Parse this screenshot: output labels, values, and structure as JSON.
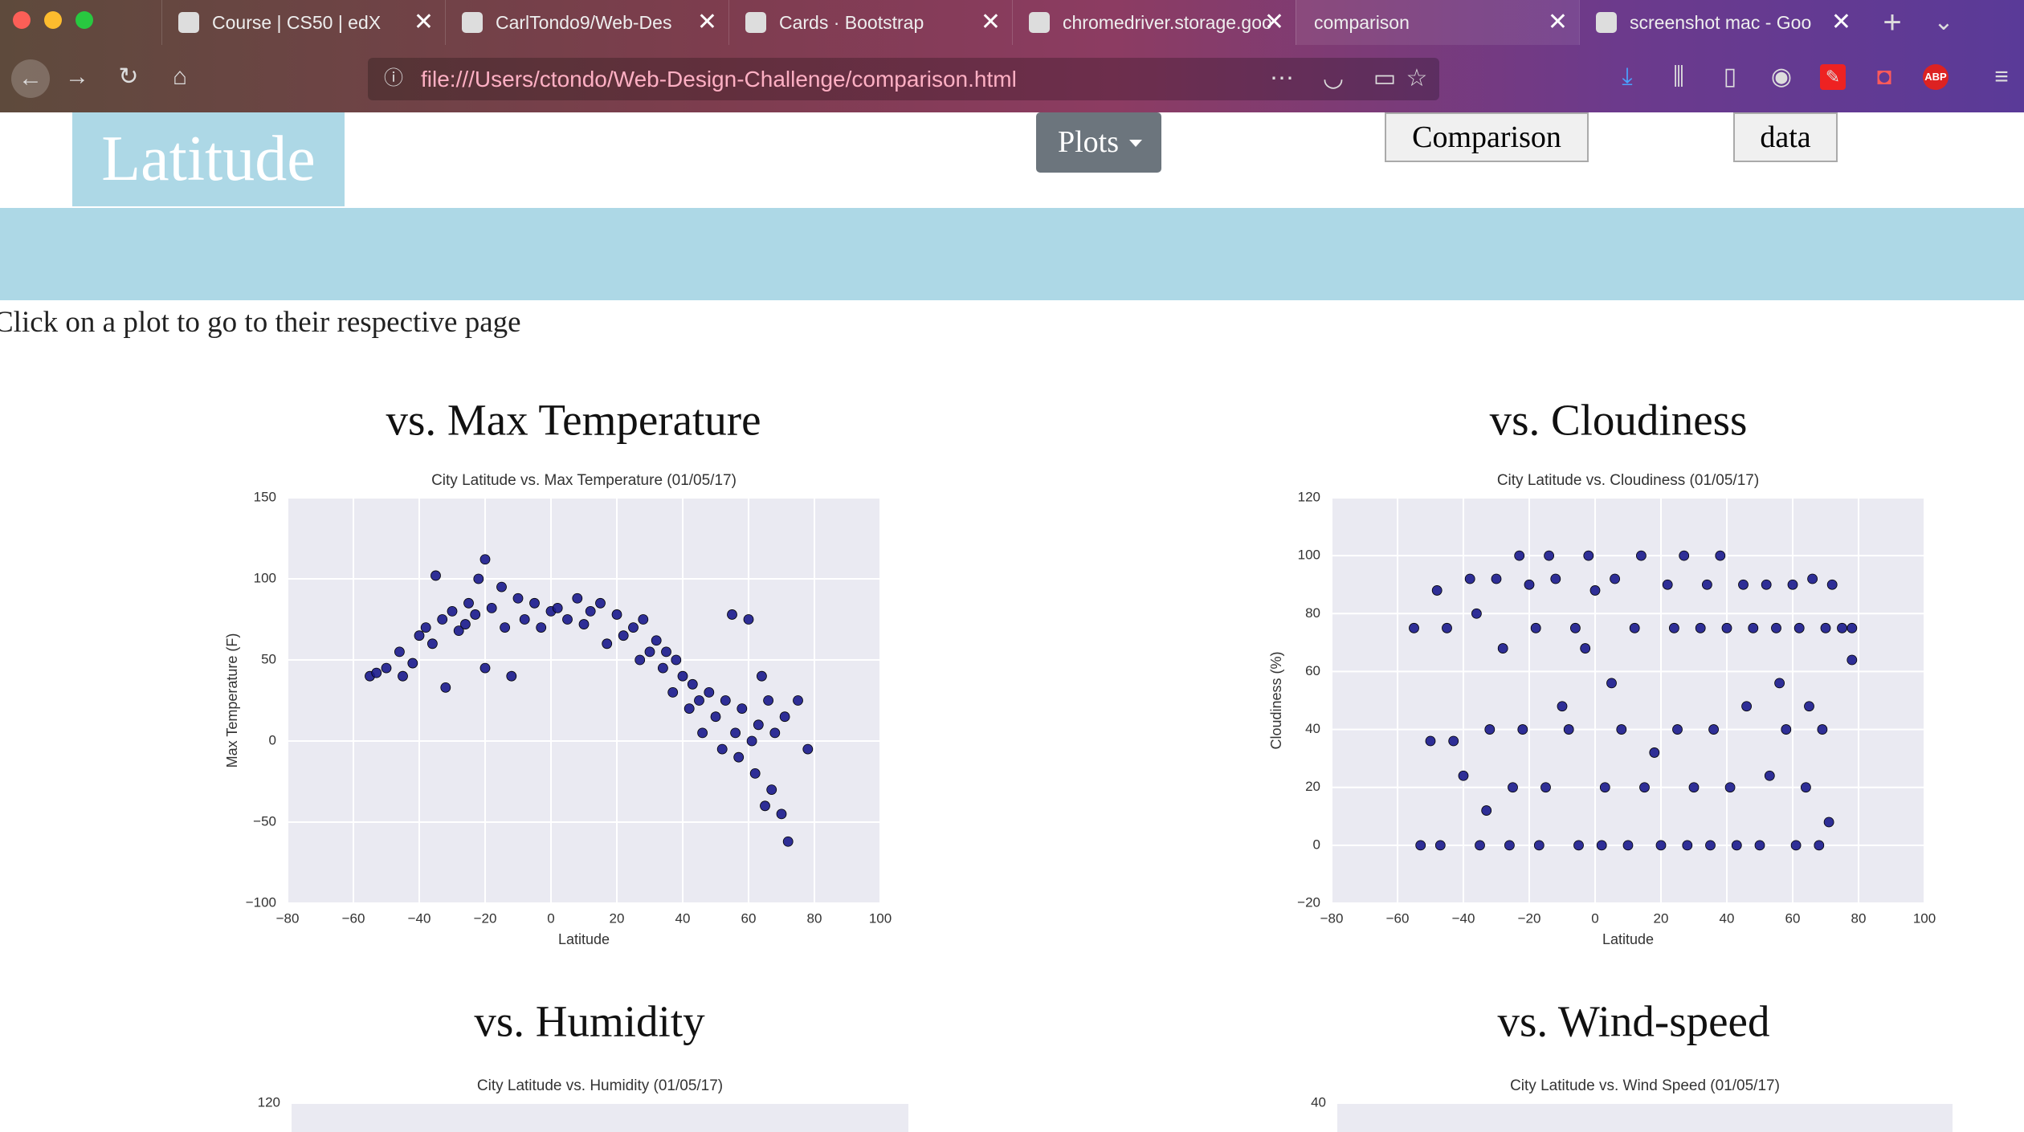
{
  "browser": {
    "tabs": [
      "Course | CS50 | edX",
      "CarlTondo9/Web-Des",
      "Cards · Bootstrap",
      "chromedriver.storage.goo",
      "comparison",
      "screenshot mac - Goo"
    ],
    "url": "file:///Users/ctondo/Web-Design-Challenge/comparison.html"
  },
  "page": {
    "brand": "Latitude",
    "nav": [
      "Plots",
      "Comparison",
      "data"
    ],
    "instruction": "Click on a plot to go to their respective page"
  },
  "chart_data": [
    {
      "type": "scatter",
      "heading": "vs. Max Temperature",
      "title": "City Latitude vs. Max Temperature (01/05/17)",
      "xlabel": "Latitude",
      "ylabel": "Max Temperature (F)",
      "color": "#1a1a8c",
      "xlim": [
        -80,
        100
      ],
      "ylim": [
        -100,
        150
      ],
      "xticks": [
        {
          "value": -80,
          "label": "−80"
        },
        {
          "value": -60,
          "label": "−60"
        },
        {
          "value": -40,
          "label": "−40"
        },
        {
          "value": -20,
          "label": "−20"
        },
        0,
        20,
        40,
        60,
        80,
        100
      ],
      "yticks": [
        {
          "value": -100,
          "label": "−100"
        },
        {
          "value": -50,
          "label": "−50"
        },
        0,
        50,
        100,
        150
      ],
      "x": [
        -55,
        -53,
        -50,
        -46,
        -45,
        -42,
        -40,
        -38,
        -36,
        -35,
        -33,
        -32,
        -30,
        -28,
        -26,
        -25,
        -23,
        -22,
        -20,
        -20,
        -18,
        -15,
        -14,
        -12,
        -10,
        -8,
        -5,
        -3,
        0,
        2,
        5,
        8,
        10,
        12,
        15,
        17,
        20,
        22,
        25,
        27,
        28,
        30,
        32,
        34,
        35,
        37,
        38,
        40,
        42,
        43,
        45,
        46,
        48,
        50,
        52,
        53,
        55,
        56,
        57,
        58,
        60,
        61,
        62,
        63,
        64,
        65,
        66,
        67,
        68,
        70,
        71,
        72,
        75,
        78
      ],
      "y": [
        40,
        42,
        45,
        55,
        40,
        48,
        65,
        70,
        60,
        102,
        75,
        33,
        80,
        68,
        72,
        85,
        78,
        100,
        112,
        45,
        82,
        95,
        70,
        40,
        88,
        75,
        85,
        70,
        80,
        82,
        75,
        88,
        72,
        80,
        85,
        60,
        78,
        65,
        70,
        50,
        75,
        55,
        62,
        45,
        55,
        30,
        50,
        40,
        20,
        35,
        25,
        5,
        30,
        15,
        -5,
        25,
        78,
        5,
        -10,
        20,
        75,
        0,
        -20,
        10,
        40,
        -40,
        25,
        -30,
        5,
        -45,
        15,
        -62,
        25,
        -5
      ]
    },
    {
      "type": "scatter",
      "heading": "vs. Cloudiness",
      "title": "City Latitude vs. Cloudiness (01/05/17)",
      "xlabel": "Latitude",
      "ylabel": "Cloudiness (%)",
      "color": "#1a1a8c",
      "xlim": [
        -80,
        100
      ],
      "ylim": [
        -20,
        120
      ],
      "xticks": [
        {
          "value": -80,
          "label": "−80"
        },
        {
          "value": -60,
          "label": "−60"
        },
        {
          "value": -40,
          "label": "−40"
        },
        {
          "value": -20,
          "label": "−20"
        },
        0,
        20,
        40,
        60,
        80,
        100
      ],
      "yticks": [
        {
          "value": -20,
          "label": "−20"
        },
        0,
        20,
        40,
        60,
        80,
        100,
        120
      ],
      "x": [
        -55,
        -53,
        -50,
        -48,
        -47,
        -45,
        -43,
        -40,
        -38,
        -36,
        -35,
        -33,
        -32,
        -30,
        -28,
        -26,
        -25,
        -23,
        -22,
        -20,
        -18,
        -17,
        -15,
        -14,
        -12,
        -10,
        -8,
        -6,
        -5,
        -3,
        -2,
        0,
        2,
        3,
        5,
        6,
        8,
        10,
        12,
        14,
        15,
        18,
        20,
        22,
        24,
        25,
        27,
        28,
        30,
        32,
        34,
        35,
        36,
        38,
        40,
        41,
        43,
        45,
        46,
        48,
        50,
        52,
        53,
        55,
        56,
        58,
        60,
        61,
        62,
        64,
        65,
        66,
        68,
        69,
        70,
        71,
        72,
        75,
        78,
        78
      ],
      "y": [
        75,
        0,
        36,
        88,
        0,
        75,
        36,
        24,
        92,
        80,
        0,
        12,
        40,
        92,
        68,
        0,
        20,
        100,
        40,
        90,
        75,
        0,
        20,
        100,
        92,
        48,
        40,
        75,
        0,
        68,
        100,
        88,
        0,
        20,
        56,
        92,
        40,
        0,
        75,
        100,
        20,
        32,
        0,
        90,
        75,
        40,
        100,
        0,
        20,
        75,
        90,
        0,
        40,
        100,
        75,
        20,
        0,
        90,
        48,
        75,
        0,
        90,
        24,
        75,
        56,
        40,
        90,
        0,
        75,
        20,
        48,
        92,
        0,
        40,
        75,
        8,
        90,
        75,
        64,
        75
      ]
    },
    {
      "type": "scatter",
      "heading": "vs. Humidity",
      "title": "City Latitude vs. Humidity (01/05/17)",
      "ylim": [
        -20,
        120
      ],
      "yticks": [
        120
      ]
    },
    {
      "type": "scatter",
      "heading": "vs. Wind-speed",
      "title": "City Latitude vs. Wind Speed (01/05/17)",
      "ylim": [
        -5,
        40
      ],
      "yticks": [
        40
      ]
    }
  ]
}
